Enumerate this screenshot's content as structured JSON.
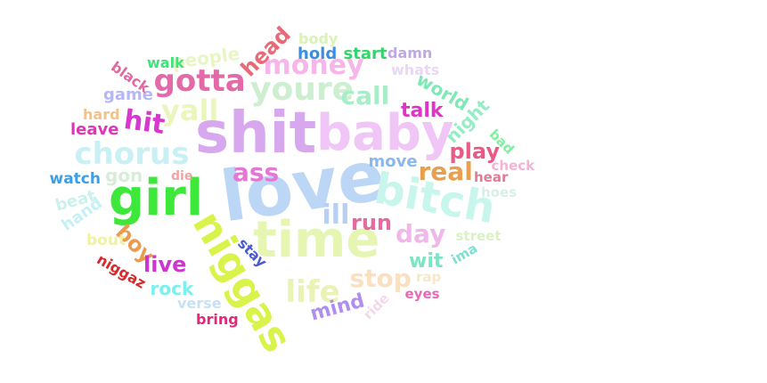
{
  "wordcloud": {
    "background": "#ffffff",
    "words": [
      {
        "text": "love",
        "color": "#bcd6f6",
        "vertical": false
      },
      {
        "text": "shit",
        "color": "#d8a8ef",
        "vertical": false
      },
      {
        "text": "baby",
        "color": "#f0c6f6",
        "vertical": false
      },
      {
        "text": "girl",
        "color": "#3ee83a",
        "vertical": false
      },
      {
        "text": "time",
        "color": "#e6f6b2",
        "vertical": false
      },
      {
        "text": "niggas",
        "color": "#d9f34a",
        "vertical": true
      },
      {
        "text": "bitch",
        "color": "#c9f6ec",
        "vertical": false
      },
      {
        "text": "chorus",
        "color": "#c9f0f4",
        "vertical": false
      },
      {
        "text": "youre",
        "color": "#cdeed0",
        "vertical": false
      },
      {
        "text": "money",
        "color": "#f6b6ea",
        "vertical": false
      },
      {
        "text": "gotta",
        "color": "#e36aa8",
        "vertical": false
      },
      {
        "text": "yall",
        "color": "#eaf6be",
        "vertical": false
      },
      {
        "text": "hit",
        "color": "#d937d0",
        "vertical": false
      },
      {
        "text": "life",
        "color": "#eaf2b6",
        "vertical": false
      },
      {
        "text": "ill",
        "color": "#b7d0f0",
        "vertical": false
      },
      {
        "text": "ass",
        "color": "#e377d3",
        "vertical": false
      },
      {
        "text": "real",
        "color": "#e8a04e",
        "vertical": false
      },
      {
        "text": "stop",
        "color": "#f9e0c0",
        "vertical": false
      },
      {
        "text": "day",
        "color": "#f0b8ea",
        "vertical": false
      },
      {
        "text": "call",
        "color": "#a8ecc8",
        "vertical": false
      },
      {
        "text": "play",
        "color": "#ea5a86",
        "vertical": false
      },
      {
        "text": "run",
        "color": "#e46aa0",
        "vertical": false
      },
      {
        "text": "head",
        "color": "#e86a76",
        "vertical": false
      },
      {
        "text": "talk",
        "color": "#df35c6",
        "vertical": false
      },
      {
        "text": "world",
        "color": "#7ee8b6",
        "vertical": false
      },
      {
        "text": "night",
        "color": "#96ecc6",
        "vertical": false
      },
      {
        "text": "boy",
        "color": "#ec9a4e",
        "vertical": false
      },
      {
        "text": "live",
        "color": "#cd36ce",
        "vertical": false
      },
      {
        "text": "mind",
        "color": "#b08ef0",
        "vertical": false
      },
      {
        "text": "gon",
        "color": "#d6eed8",
        "vertical": false
      },
      {
        "text": "wit",
        "color": "#7ce6c4",
        "vertical": false
      },
      {
        "text": "people",
        "color": "#e8f6c4",
        "vertical": false
      },
      {
        "text": "rock",
        "color": "#7cf0ee",
        "vertical": false
      },
      {
        "text": "move",
        "color": "#8ab8ec",
        "vertical": false
      },
      {
        "text": "hold",
        "color": "#3a8ee0",
        "vertical": false
      },
      {
        "text": "start",
        "color": "#36d26c",
        "vertical": false
      },
      {
        "text": "game",
        "color": "#b7b7f6",
        "vertical": false
      },
      {
        "text": "watch",
        "color": "#3e9ee6",
        "vertical": false
      },
      {
        "text": "hand",
        "color": "#c6f0f4",
        "vertical": false
      },
      {
        "text": "beat",
        "color": "#c9f2ee",
        "vertical": false
      },
      {
        "text": "leave",
        "color": "#e036b6",
        "vertical": false
      },
      {
        "text": "hard",
        "color": "#f0c28e",
        "vertical": false
      },
      {
        "text": "black",
        "color": "#e06aa0",
        "vertical": false
      },
      {
        "text": "walk",
        "color": "#40e27a",
        "vertical": false
      },
      {
        "text": "body",
        "color": "#d9f2b6",
        "vertical": false
      },
      {
        "text": "damn",
        "color": "#c0a8e2",
        "vertical": false
      },
      {
        "text": "whats",
        "color": "#e8d8f6",
        "vertical": false
      },
      {
        "text": "bout",
        "color": "#f0f2a0",
        "vertical": false
      },
      {
        "text": "niggaz",
        "color": "#d42a2e",
        "vertical": false
      },
      {
        "text": "verse",
        "color": "#c6e2f2",
        "vertical": false
      },
      {
        "text": "bring",
        "color": "#e3287a",
        "vertical": false
      },
      {
        "text": "stay",
        "color": "#4a5ad0",
        "vertical": false
      },
      {
        "text": "ride",
        "color": "#f4d8ea",
        "vertical": false
      },
      {
        "text": "rap",
        "color": "#f6e8c8",
        "vertical": false
      },
      {
        "text": "eyes",
        "color": "#e66ab6",
        "vertical": false
      },
      {
        "text": "ima",
        "color": "#7ee0d0",
        "vertical": false
      },
      {
        "text": "street",
        "color": "#d8f2c4",
        "vertical": false
      },
      {
        "text": "hoes",
        "color": "#d6f0e6",
        "vertical": false
      },
      {
        "text": "hear",
        "color": "#e07a96",
        "vertical": false
      },
      {
        "text": "check",
        "color": "#f6b2d6",
        "vertical": false
      },
      {
        "text": "bad",
        "color": "#7ef0a0",
        "vertical": false
      },
      {
        "text": "die",
        "color": "#f2a4a4",
        "vertical": false
      }
    ]
  }
}
